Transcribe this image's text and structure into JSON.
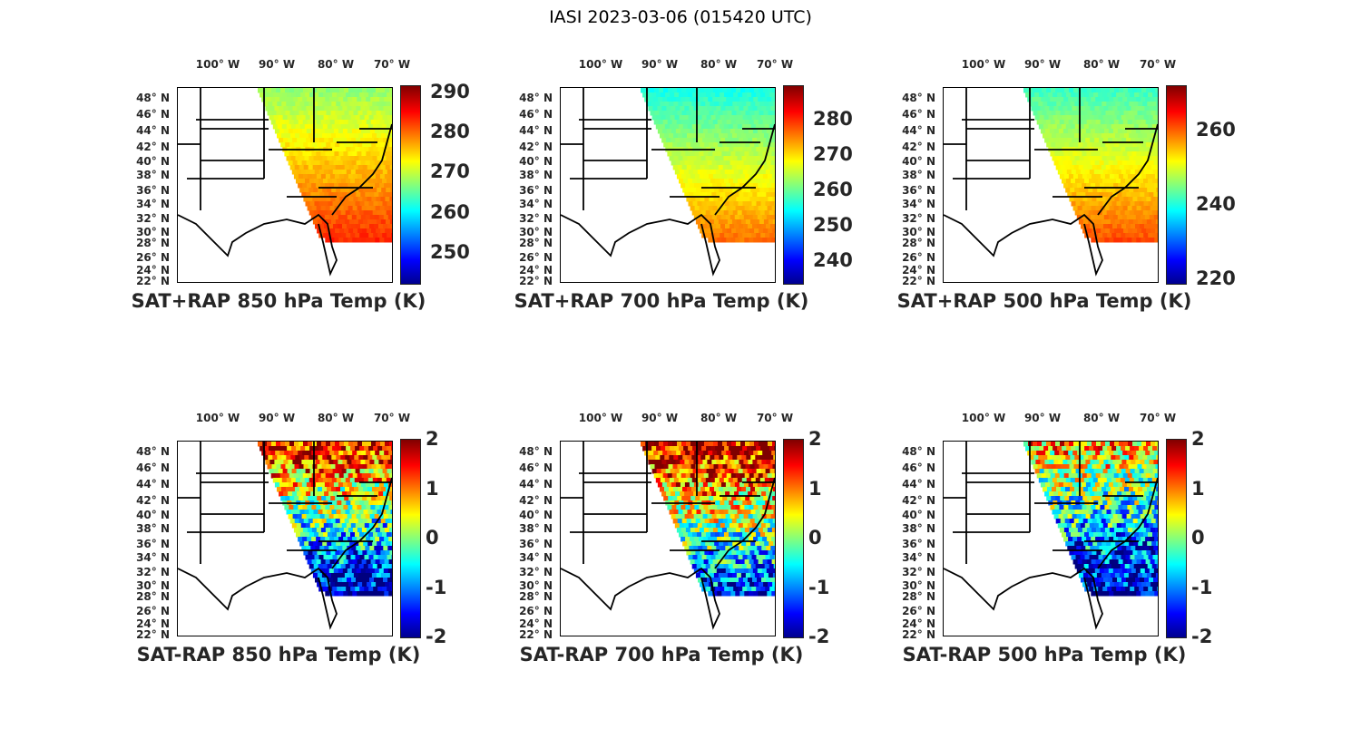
{
  "title": "IASI 2023-03-06 (015420 UTC)",
  "lon_labels": [
    "100° W",
    "90° W",
    "80° W",
    "70° W"
  ],
  "lat_labels": [
    "48° N",
    "46° N",
    "44° N",
    "42° N",
    "40° N",
    "38° N",
    "36° N",
    "34° N",
    "32° N",
    "30° N",
    "28° N",
    "26° N",
    "24° N",
    "22° N"
  ],
  "colormap": "jet",
  "panels": [
    {
      "title": "SAT+RAP 850 hPa Temp (K)",
      "clim": [
        242.4,
        291.5
      ],
      "ticks": [
        "290",
        "280",
        "270",
        "260",
        "250"
      ],
      "tick_values": [
        290,
        280,
        270,
        260,
        250
      ],
      "field": "abs",
      "north": 268,
      "south": 284
    },
    {
      "title": "SAT+RAP 700 hPa Temp (K)",
      "clim": [
        233.6,
        289.5
      ],
      "ticks": [
        "280",
        "270",
        "260",
        "250",
        "240"
      ],
      "tick_values": [
        280,
        270,
        260,
        250,
        240
      ],
      "field": "abs",
      "north": 256,
      "south": 277
    },
    {
      "title": "SAT+RAP 500 hPa Temp (K)",
      "clim": [
        218.8,
        272
      ],
      "ticks": [
        "260",
        "240",
        "220"
      ],
      "tick_values": [
        260,
        240,
        220
      ],
      "field": "abs",
      "north": 242,
      "south": 262
    },
    {
      "title": "SAT-RAP 850 hPa Temp (K)",
      "clim": [
        -2,
        2
      ],
      "ticks": [
        "2",
        "1",
        "0",
        "-1",
        "-2"
      ],
      "tick_values": [
        2,
        1,
        0,
        -1,
        -2
      ],
      "field": "diff",
      "north": 1.5,
      "south": -2
    },
    {
      "title": "SAT-RAP 700 hPa Temp (K)",
      "clim": [
        -2,
        2
      ],
      "ticks": [
        "2",
        "1",
        "0",
        "-1",
        "-2"
      ],
      "tick_values": [
        2,
        1,
        0,
        -1,
        -2
      ],
      "field": "diff",
      "north": 1.8,
      "south": -1.5
    },
    {
      "title": "SAT-RAP 500 hPa Temp (K)",
      "clim": [
        -2,
        2
      ],
      "ticks": [
        "2",
        "1",
        "0",
        "-1",
        "-2"
      ],
      "tick_values": [
        2,
        1,
        0,
        -1,
        -2
      ],
      "field": "diff",
      "north": 0.8,
      "south": -2
    }
  ]
}
